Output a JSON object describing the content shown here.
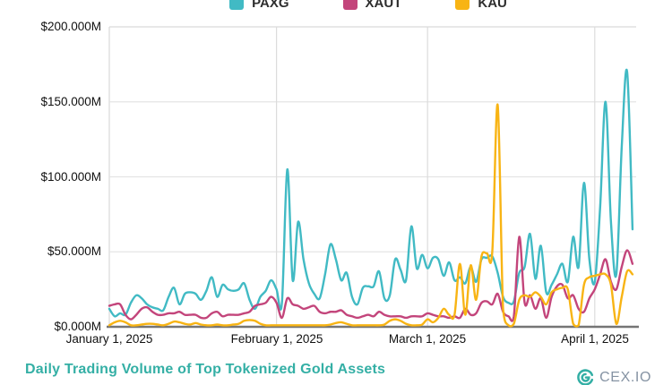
{
  "legend": [
    {
      "label": "PAXG",
      "color": "#41BAC4"
    },
    {
      "label": "XAUT",
      "color": "#C3457B"
    },
    {
      "label": "KAU",
      "color": "#F8B414"
    }
  ],
  "y_axis": {
    "tick_labels": [
      "$200.000M",
      "$150.000M",
      "$100.000M",
      "$50.000M",
      "$0.000M"
    ],
    "tick_values": [
      200,
      150,
      100,
      50,
      0
    ]
  },
  "x_axis": {
    "tick_labels": [
      "January 1, 2025",
      "February 1, 2025",
      "March 1, 2025",
      "April 1, 2025"
    ],
    "tick_days": [
      0,
      31,
      59,
      90
    ]
  },
  "title": "Daily Trading Volume of Top Tokenized Gold Assets",
  "branding": {
    "name": "CEX.IO",
    "icon": "cex-io-ring-icon",
    "color": "#34AFA5",
    "text_color": "#8593A3"
  },
  "chart_data": {
    "type": "line",
    "title": "Daily Trading Volume of Top Tokenized Gold Assets",
    "x_unit": "days from 2025-01-01",
    "x_range_days": [
      0,
      97
    ],
    "ylim": [
      0,
      200
    ],
    "y_format": "$#.000M (millions USD)",
    "grid": true,
    "legend_position": "top-center",
    "series": [
      {
        "name": "PAXG",
        "color": "#41BAC4",
        "values": [
          12,
          7,
          9,
          8,
          16,
          21,
          19,
          15,
          13,
          12,
          11,
          20,
          26,
          15,
          22,
          23,
          22,
          18,
          24,
          33,
          20,
          28,
          25,
          24,
          25,
          29,
          18,
          12,
          20,
          24,
          31,
          25,
          16,
          105,
          31,
          70,
          45,
          29,
          22,
          19,
          35,
          55,
          45,
          31,
          36,
          20,
          15,
          26,
          27,
          27,
          37,
          19,
          21,
          45,
          38,
          31,
          67,
          39,
          48,
          39,
          46,
          45,
          34,
          43,
          31,
          33,
          29,
          40,
          30,
          45,
          46,
          47,
          36,
          20,
          16,
          17,
          36,
          40,
          62,
          32,
          54,
          23,
          28,
          35,
          42,
          30,
          60,
          40,
          96,
          45,
          30,
          80,
          150,
          70,
          35,
          120,
          170,
          65
        ]
      },
      {
        "name": "XAUT",
        "color": "#C3457B",
        "values": [
          14,
          15,
          15,
          8,
          5,
          8,
          12,
          13,
          10,
          8,
          8,
          9,
          9,
          10,
          8,
          8,
          8,
          6,
          6,
          9,
          10,
          7,
          8,
          8,
          8,
          9,
          10,
          14,
          15,
          16,
          20,
          16,
          6,
          19,
          15,
          14,
          12,
          13,
          14,
          10,
          9,
          10,
          10,
          11,
          8,
          7,
          6,
          7,
          8,
          7,
          10,
          8,
          7,
          7,
          7,
          6,
          7,
          7,
          7,
          9,
          8,
          7,
          7,
          6,
          7,
          6,
          12,
          8,
          9,
          16,
          17,
          15,
          22,
          10,
          7,
          7,
          60,
          16,
          21,
          12,
          19,
          6,
          20,
          27,
          28,
          19,
          21,
          12,
          10,
          19,
          25,
          35,
          45,
          30,
          25,
          40,
          51,
          42
        ]
      },
      {
        "name": "KAU",
        "color": "#F8B414",
        "values": [
          1,
          3,
          4,
          3,
          1,
          1,
          1.5,
          2,
          2,
          1.5,
          1,
          2,
          3.5,
          3,
          2,
          1.5,
          2.5,
          1.5,
          1,
          1,
          1.5,
          1,
          1,
          1.5,
          2,
          4,
          4.5,
          4,
          2,
          1,
          1,
          1,
          1,
          1,
          1,
          1,
          1,
          1,
          1,
          1,
          1,
          1.5,
          2.5,
          3,
          2,
          1,
          1,
          1,
          1,
          1,
          1,
          1.5,
          4,
          5,
          4,
          2,
          1,
          1,
          1.5,
          5,
          3,
          6,
          12,
          8,
          8,
          42,
          8,
          41,
          18,
          47,
          49,
          50,
          148,
          12,
          1,
          2,
          18,
          21,
          20,
          23,
          20,
          15,
          23,
          25,
          26,
          25,
          2,
          1,
          28,
          33,
          34,
          35,
          35,
          28,
          2,
          20,
          37,
          35
        ]
      }
    ]
  }
}
